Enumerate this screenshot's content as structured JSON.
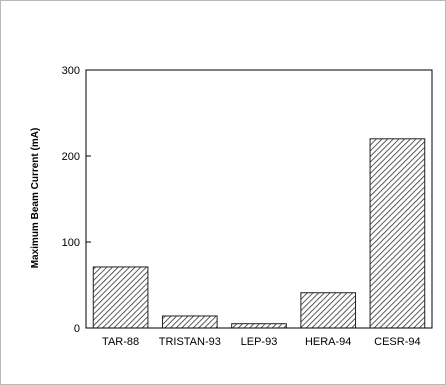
{
  "chart_data": {
    "type": "bar",
    "title": "",
    "xlabel": "",
    "ylabel": "Maximum Beam Current  (mA)",
    "categories": [
      "TAR-88",
      "TRISTAN-93",
      "LEP-93",
      "HERA-94",
      "CESR-94"
    ],
    "values": [
      71,
      14,
      5,
      41,
      220
    ],
    "ylim": [
      0,
      300
    ],
    "yticks": [
      0,
      100,
      200,
      300
    ],
    "grid": false,
    "legend": "none",
    "bar_fill": "hatched",
    "colors": {
      "axis": "#000000",
      "bar_stroke": "#222222",
      "hatch": "#333333",
      "background": "#ffffff"
    }
  }
}
